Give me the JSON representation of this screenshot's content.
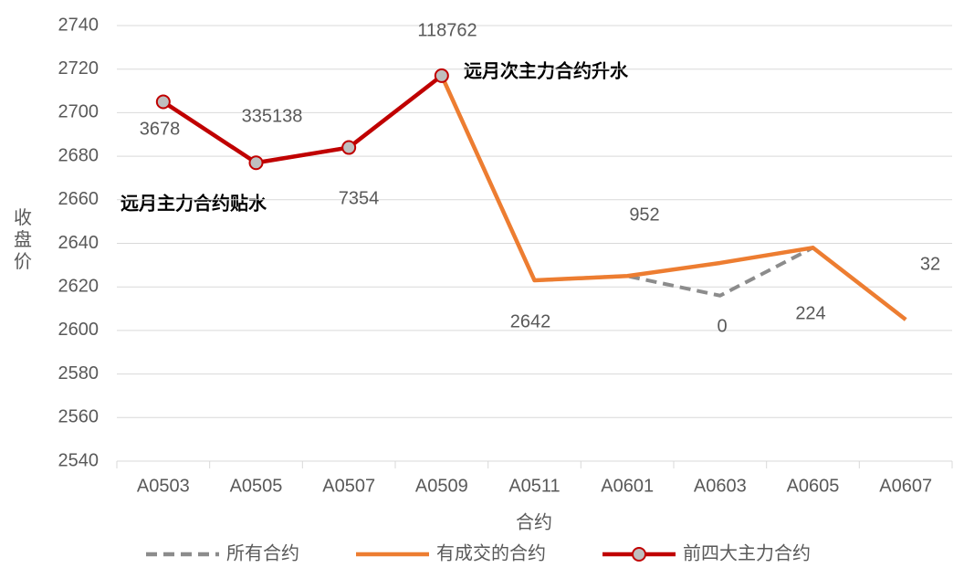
{
  "chart_data": {
    "type": "line",
    "x_label": "合约",
    "y_label": "收盘价",
    "categories": [
      "A0503",
      "A0505",
      "A0507",
      "A0509",
      "A0511",
      "A0601",
      "A0603",
      "A0605",
      "A0607"
    ],
    "series": [
      {
        "name": "所有合约",
        "color": "#8c8c8c",
        "dashed": true,
        "values": [
          2705,
          2677,
          2684,
          2717,
          2623,
          2625,
          2616,
          2638,
          2605
        ]
      },
      {
        "name": "有成交的合约",
        "color": "#ed7d31",
        "values": [
          null,
          null,
          null,
          2717,
          2623,
          2625,
          2631,
          2638,
          2605
        ]
      },
      {
        "name": "前四大主力合约",
        "color": "#c00000",
        "markers": true,
        "values": [
          2705,
          2677,
          2684,
          2717,
          null,
          null,
          null,
          null,
          null
        ]
      }
    ],
    "point_labels": [
      "3678",
      "335138",
      "7354",
      "118762",
      "2642",
      "952",
      "0",
      "224",
      "32"
    ],
    "annotations": [
      "远月主力合约贴水",
      "远月次主力合约升水"
    ],
    "ylim": [
      2540,
      2740
    ],
    "yticks": [
      2540,
      2560,
      2580,
      2600,
      2620,
      2640,
      2660,
      2680,
      2700,
      2720,
      2740
    ],
    "grid": true,
    "legend": "bottom"
  }
}
